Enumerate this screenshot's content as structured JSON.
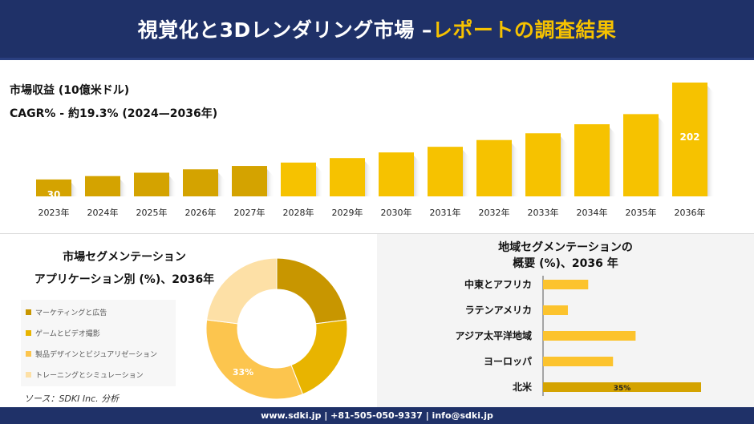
{
  "header": {
    "title_main": "視覚化と3Dレンダリング市場 –",
    "title_accent": "レポートの調査結果"
  },
  "metrics": {
    "revenue_label": "市場収益 (10億米ドル)",
    "cagr_label": "CAGR% - 約19.3% (2024—2036年)"
  },
  "colors": {
    "header_bg": "#1f3168",
    "accent": "#f6c200",
    "bar_primary": "#d4a300",
    "bar_highlight": "#f6c200"
  },
  "chart_data": [
    {
      "type": "bar",
      "title": "",
      "categories": [
        "2023年",
        "2024年",
        "2025年",
        "2026年",
        "2027年",
        "2028年",
        "2029年",
        "2030年",
        "2031年",
        "2032年",
        "2033年",
        "2034年",
        "2035年",
        "2036年"
      ],
      "values": [
        30,
        36,
        42,
        48,
        54,
        60,
        68,
        78,
        88,
        100,
        112,
        128,
        146,
        202
      ],
      "data_labels": {
        "0": "30",
        "13": "202"
      },
      "ylim": [
        0,
        202
      ],
      "grid": false
    },
    {
      "type": "pie",
      "title": "市場セグメンテーション アプリケーション別 (%)、2036年",
      "labels": [
        "マーケティングと広告",
        "ゲームとビデオ撮影",
        "製品デザインとビジュアリゼーション",
        "トレーニングとシミュレーション"
      ],
      "values": [
        23,
        21,
        33,
        23
      ],
      "colors": [
        "#c89600",
        "#e8b400",
        "#fcc54e",
        "#fde0a6"
      ],
      "data_labels": {
        "2": "33%"
      },
      "legend": "left"
    },
    {
      "type": "bar",
      "orientation": "horizontal",
      "title": "地域セグメンテーションの 概要 (%)、2036 年",
      "categories": [
        "中東とアフリカ",
        "ラテンアメリカ",
        "アジア太平洋地域",
        "ヨーロッパ",
        "北米"
      ],
      "values": [
        10,
        5.5,
        20.5,
        15.5,
        35
      ],
      "colors": [
        "#fcc32d",
        "#fcc32d",
        "#fcc32d",
        "#fcc32d",
        "#d4a300"
      ],
      "data_labels": {
        "4": "35%"
      }
    }
  ],
  "segment_titles": [
    "市場セグメンテーション",
    "アプリケーション別 (%)、2036年"
  ],
  "region_titles": [
    "地域セグメンテーションの",
    "概要 (%)、2036 年"
  ],
  "source": "ソース：SDKI Inc. 分析",
  "footer": "www.sdki.jp | +81-505-050-9337 | info@sdki.jp"
}
